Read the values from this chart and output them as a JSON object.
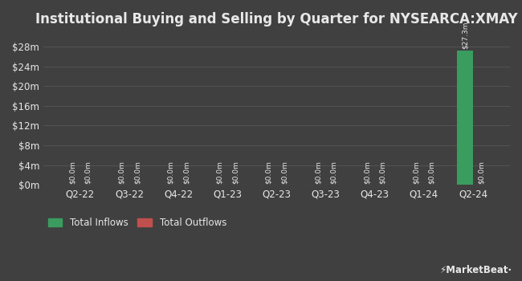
{
  "title": "Institutional Buying and Selling by Quarter for NYSEARCA:XMAY",
  "categories": [
    "Q2-22",
    "Q3-22",
    "Q4-22",
    "Q1-23",
    "Q2-23",
    "Q3-23",
    "Q4-23",
    "Q1-24",
    "Q2-24"
  ],
  "inflows": [
    0,
    0,
    0,
    0,
    0,
    0,
    0,
    0,
    27.3
  ],
  "outflows": [
    0,
    0,
    0,
    0,
    0,
    0,
    0,
    0,
    0
  ],
  "bar_width": 0.32,
  "inflow_color": "#3a9c5f",
  "outflow_color": "#c0504d",
  "background_color": "#404040",
  "text_color": "#e8e8e8",
  "grid_color": "#565656",
  "yticks": [
    0,
    4,
    8,
    12,
    16,
    20,
    24,
    28
  ],
  "ylim": [
    0,
    30.5
  ],
  "legend_inflows": "Total Inflows",
  "legend_outflows": "Total Outflows",
  "annotation_value": "$27.3m",
  "annotation_zero": "$0.0m",
  "title_fontsize": 12,
  "tick_fontsize": 8.5,
  "label_fontsize": 6.5,
  "legend_fontsize": 8.5
}
